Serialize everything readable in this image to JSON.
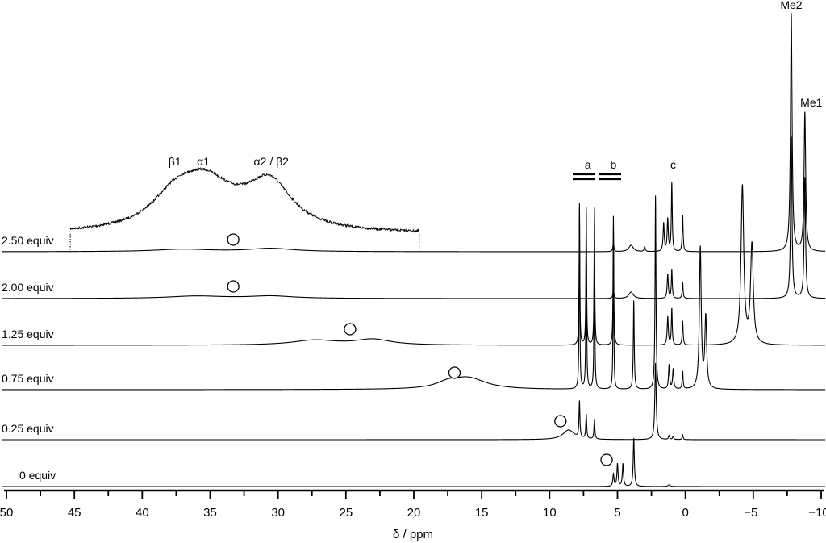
{
  "chart_data": {
    "type": "line",
    "title": "",
    "xlabel": "δ / ppm",
    "ylabel": "",
    "xlim": [
      50,
      -10
    ],
    "x_ticks": [
      50,
      45,
      40,
      35,
      30,
      25,
      20,
      15,
      10,
      5,
      0,
      -5,
      -10
    ],
    "x_tick_labels": [
      "50",
      "45",
      "40",
      "35",
      "30",
      "25",
      "20",
      "15",
      "10",
      "5",
      "0",
      "−5",
      "−10"
    ],
    "grid": false,
    "intensity_units": "arbitrary",
    "series": [
      {
        "name": "0 equiv",
        "circle_ppm": 5.8,
        "peaks": [
          [
            5.3,
            15,
            0.05
          ],
          [
            5.0,
            28,
            0.05
          ],
          [
            4.6,
            28,
            0.05
          ],
          [
            3.8,
            60,
            0.05
          ],
          [
            1.2,
            2,
            0.1
          ]
        ]
      },
      {
        "name": "0.25 equiv",
        "circle_ppm": 9.2,
        "peaks": [
          [
            8.6,
            12,
            0.5
          ],
          [
            7.8,
            45,
            0.04
          ],
          [
            7.3,
            30,
            0.04
          ],
          [
            6.7,
            25,
            0.04
          ],
          [
            2.2,
            95,
            0.06
          ],
          [
            1.2,
            5,
            0.05
          ],
          [
            0.9,
            4,
            0.05
          ],
          [
            0.2,
            6,
            0.04
          ]
        ]
      },
      {
        "name": "0.75 equiv",
        "circle_ppm": 17.0,
        "peaks": [
          [
            16.0,
            14,
            1.6
          ],
          [
            17.5,
            6,
            1.0
          ],
          [
            7.8,
            230,
            0.03
          ],
          [
            7.3,
            220,
            0.03
          ],
          [
            6.7,
            220,
            0.03
          ],
          [
            5.3,
            200,
            0.03
          ],
          [
            3.8,
            110,
            0.04
          ],
          [
            2.2,
            240,
            0.04
          ],
          [
            1.2,
            30,
            0.05
          ],
          [
            0.9,
            25,
            0.05
          ],
          [
            0.2,
            22,
            0.04
          ],
          [
            -1.1,
            175,
            0.08
          ],
          [
            -1.5,
            88,
            0.08
          ]
        ]
      },
      {
        "name": "1.25 equiv",
        "circle_ppm": 24.7,
        "peaks": [
          [
            27.3,
            6,
            2.0
          ],
          [
            23.0,
            7,
            1.6
          ],
          [
            7.8,
            170,
            0.03
          ],
          [
            7.3,
            170,
            0.03
          ],
          [
            6.7,
            170,
            0.03
          ],
          [
            5.3,
            160,
            0.03
          ],
          [
            1.3,
            35,
            0.05
          ],
          [
            1.0,
            45,
            0.04
          ],
          [
            0.2,
            30,
            0.04
          ],
          [
            -4.2,
            196,
            0.12
          ],
          [
            -4.9,
            123,
            0.12
          ]
        ]
      },
      {
        "name": "2.00 equiv",
        "circle_ppm": 33.3,
        "peaks": [
          [
            36.0,
            3,
            2.5
          ],
          [
            30.5,
            3,
            2.0
          ],
          [
            5.3,
            10,
            0.05
          ],
          [
            4.0,
            8,
            0.2
          ],
          [
            1.3,
            30,
            0.05
          ],
          [
            1.0,
            35,
            0.04
          ],
          [
            0.2,
            20,
            0.04
          ],
          [
            -7.8,
            200,
            0.06
          ],
          [
            -8.8,
            150,
            0.06
          ]
        ]
      },
      {
        "name": "2.50 equiv",
        "circle_ppm": 33.3,
        "peaks": [
          [
            37.0,
            3,
            2.5
          ],
          [
            30.5,
            4,
            2.0
          ],
          [
            5.3,
            10,
            0.05
          ],
          [
            4.0,
            8,
            0.2
          ],
          [
            3.0,
            6,
            0.05
          ],
          [
            1.6,
            35,
            0.05
          ],
          [
            1.3,
            40,
            0.05
          ],
          [
            1.0,
            85,
            0.04
          ],
          [
            0.2,
            45,
            0.04
          ],
          [
            -7.8,
            295,
            0.07
          ],
          [
            -8.8,
            172,
            0.07
          ]
        ]
      }
    ],
    "inset": {
      "of_series": "2.50 equiv",
      "range_ppm": [
        45.3,
        19.6
      ],
      "peaks": [
        [
          37.5,
          40,
          2.2
        ],
        [
          35.3,
          45,
          2.2
        ],
        [
          30.6,
          55,
          2.0
        ],
        [
          33,
          10,
          3
        ]
      ],
      "labels": [
        {
          "text": "β1",
          "ppm": 37.6
        },
        {
          "text": "α1",
          "ppm": 35.5
        },
        {
          "text": "α2 / β2",
          "ppm": 30.5
        }
      ]
    },
    "annotations": [
      {
        "text": "a",
        "ppm": 7.3
      },
      {
        "text": "b",
        "ppm": 5.3
      },
      {
        "text": "c",
        "ppm": 0.9
      },
      {
        "text": "Me2",
        "ppm": -7.8
      },
      {
        "text": "Me1",
        "ppm": -8.8
      }
    ]
  }
}
